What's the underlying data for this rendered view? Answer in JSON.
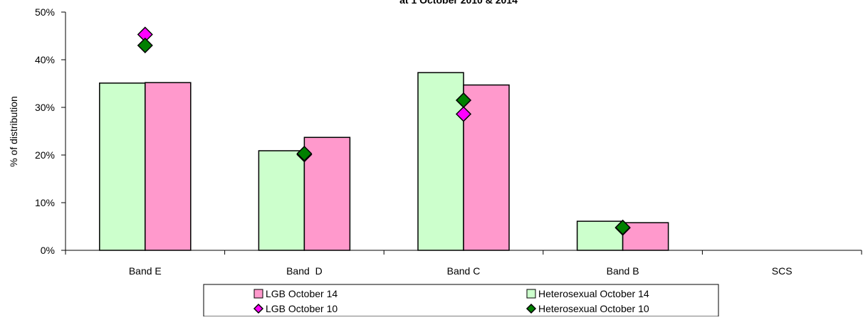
{
  "chart_data": {
    "type": "bar",
    "title": "at 1 October 2010 & 2014",
    "xlabel": "",
    "ylabel": "% of distribution",
    "ylim": [
      0,
      50
    ],
    "y_ticks": [
      "0%",
      "10%",
      "20%",
      "30%",
      "40%",
      "50%"
    ],
    "categories": [
      "Band E",
      "Band  D",
      "Band C",
      "Band B",
      "SCS"
    ],
    "bar_series": [
      {
        "name": "Heterosexual October 14",
        "color": "#ccffcc",
        "values": [
          35.1,
          20.9,
          37.3,
          6.1,
          0
        ]
      },
      {
        "name": "LGB October 14",
        "color": "#ff99cc",
        "values": [
          35.2,
          23.7,
          34.7,
          5.8,
          0
        ]
      }
    ],
    "marker_series": [
      {
        "name": "LGB October 10",
        "color": "#ff00ff",
        "values": [
          45.3,
          20.1,
          28.6,
          4.7,
          0
        ]
      },
      {
        "name": "Heterosexual October 10",
        "color": "#008000",
        "values": [
          43.0,
          20.3,
          31.5,
          4.8,
          0
        ]
      }
    ],
    "grid": false,
    "legend_position": "bottom"
  },
  "legend": {
    "items": [
      {
        "label": "LGB October 14",
        "color": "#ff99cc",
        "shape": "square"
      },
      {
        "label": "Heterosexual October 14",
        "color": "#ccffcc",
        "shape": "square"
      },
      {
        "label": "LGB October 10",
        "color": "#ff00ff",
        "shape": "diamond"
      },
      {
        "label": "Heterosexual October 10",
        "color": "#008000",
        "shape": "diamond"
      }
    ]
  }
}
